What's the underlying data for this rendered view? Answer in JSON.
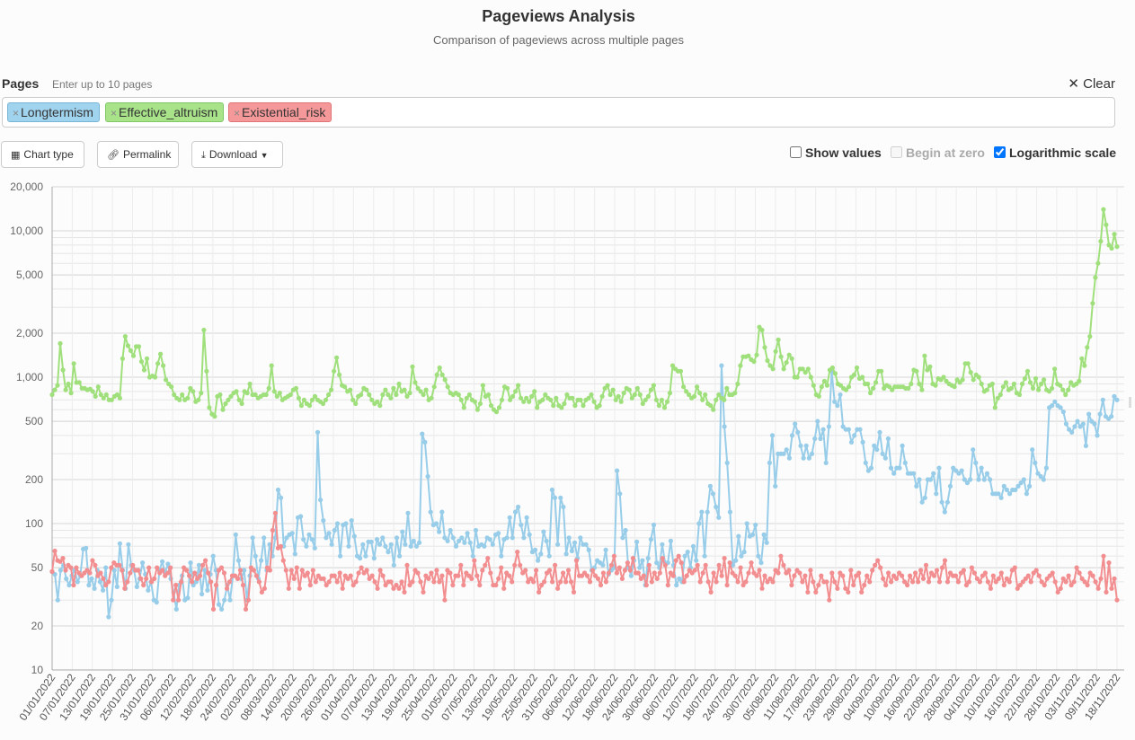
{
  "header": {
    "title": "Pageviews Analysis",
    "subtitle": "Comparison of pageviews across multiple pages"
  },
  "pages_input": {
    "label": "Pages",
    "hint": "Enter up to 10 pages",
    "clear_label": "Clear",
    "tags": [
      "Longtermism",
      "Effective_altruism",
      "Existential_risk"
    ]
  },
  "toolbar": {
    "chart_type_label": "Chart type",
    "permalink_label": "Permalink",
    "download_label": "Download",
    "show_values_label": "Show values",
    "show_values_checked": false,
    "begin_zero_label": "Begin at zero",
    "begin_zero_checked": false,
    "log_scale_label": "Logarithmic scale",
    "log_scale_checked": true
  },
  "chart_data": {
    "type": "line",
    "yscale": "log",
    "ylim": [
      10,
      20000
    ],
    "yticks": [
      10,
      20,
      50,
      100,
      200,
      500,
      1000,
      2000,
      5000,
      10000,
      20000
    ],
    "ytick_labels": [
      "10",
      "20",
      "50",
      "100",
      "200",
      "500",
      "1,000",
      "2,000",
      "5,000",
      "10,000",
      "20,000"
    ],
    "x_start": "01/01/2022",
    "x_end": "22/11/2022",
    "xtick_labels": [
      "01/01/2022",
      "07/01/2022",
      "13/01/2022",
      "19/01/2022",
      "25/01/2022",
      "31/01/2022",
      "06/02/2022",
      "12/02/2022",
      "18/02/2022",
      "24/02/2022",
      "02/03/2022",
      "08/03/2022",
      "14/03/2022",
      "20/03/2022",
      "26/03/2022",
      "01/04/2022",
      "07/04/2022",
      "13/04/2022",
      "19/04/2022",
      "25/04/2022",
      "01/05/2022",
      "07/05/2022",
      "13/05/2022",
      "19/05/2022",
      "25/05/2022",
      "31/05/2022",
      "06/06/2022",
      "12/06/2022",
      "18/06/2022",
      "24/06/2022",
      "30/06/2022",
      "06/07/2022",
      "12/07/2022",
      "18/07/2022",
      "24/07/2022",
      "30/07/2022",
      "05/08/2022",
      "11/08/2022",
      "17/08/2022",
      "23/08/2022",
      "29/08/2022",
      "04/09/2022",
      "10/09/2022",
      "16/09/2022",
      "22/09/2022",
      "28/09/2022",
      "04/10/2022",
      "10/10/2022",
      "16/10/2022",
      "22/10/2022",
      "28/10/2022",
      "03/11/2022",
      "09/11/2022",
      "18/11/2022"
    ],
    "series": [
      {
        "name": "Longtermism",
        "color": "#98cde9",
        "values": [
          47,
          45,
          30,
          48,
          52,
          42,
          38,
          44,
          48,
          40,
          44,
          67,
          68,
          38,
          42,
          36,
          48,
          40,
          35,
          50,
          23,
          30,
          48,
          37,
          73,
          48,
          36,
          72,
          52,
          48,
          37,
          42,
          54,
          45,
          35,
          40,
          30,
          29,
          48,
          55,
          46,
          53,
          42,
          34,
          26,
          38,
          44,
          30,
          31,
          54,
          38,
          40,
          52,
          33,
          48,
          35,
          45,
          60,
          48,
          28,
          26,
          30,
          38,
          30,
          44,
          84,
          56,
          42,
          48,
          30,
          44,
          80,
          60,
          42,
          56,
          80,
          48,
          72,
          60,
          80,
          170,
          150,
          70,
          80,
          84,
          86,
          62,
          110,
          112,
          78,
          70,
          84,
          78,
          68,
          420,
          145,
          105,
          80,
          86,
          72,
          90,
          100,
          60,
          98,
          100,
          70,
          105,
          82,
          60,
          58,
          72,
          60,
          75,
          75,
          58,
          78,
          72,
          80,
          70,
          64,
          72,
          52,
          80,
          60,
          88,
          72,
          118,
          70,
          76,
          70,
          74,
          410,
          360,
          210,
          120,
          98,
          100,
          88,
          120,
          80,
          76,
          90,
          80,
          70,
          76,
          80,
          74,
          86,
          74,
          60,
          90,
          70,
          72,
          70,
          80,
          78,
          72,
          84,
          86,
          60,
          78,
          80,
          110,
          80,
          120,
          130,
          98,
          80,
          110,
          84,
          64,
          66,
          56,
          62,
          88,
          76,
          60,
          170,
          150,
          72,
          150,
          130,
          62,
          80,
          65,
          74,
          58,
          80,
          72,
          72,
          66,
          48,
          50,
          56,
          54,
          52,
          66,
          45,
          48,
          50,
          230,
          160,
          80,
          90,
          50,
          44,
          56,
          75,
          50,
          56,
          38,
          58,
          78,
          98,
          54,
          50,
          72,
          54,
          54,
          76,
          52,
          38,
          42,
          40,
          60,
          64,
          50,
          70,
          56,
          100,
          120,
          60,
          120,
          180,
          160,
          130,
          110,
          1200,
          460,
          260,
          120,
          52,
          56,
          82,
          60,
          64,
          100,
          82,
          84,
          98,
          60,
          54,
          84,
          74,
          260,
          400,
          180,
          300,
          300,
          300,
          320,
          280,
          400,
          480,
          420,
          340,
          280,
          340,
          280,
          300,
          380,
          500,
          380,
          440,
          260,
          460,
          1100,
          680,
          640,
          760,
          460,
          440,
          440,
          360,
          400,
          440,
          440,
          360,
          260,
          230,
          240,
          340,
          320,
          420,
          300,
          280,
          380,
          240,
          220,
          240,
          240,
          340,
          260,
          220,
          220,
          220,
          180,
          200,
          140,
          150,
          200,
          200,
          220,
          160,
          240,
          140,
          120,
          140,
          180,
          240,
          230,
          220,
          230,
          200,
          190,
          200,
          320,
          260,
          200,
          240,
          200,
          220,
          200,
          160,
          160,
          160,
          150,
          180,
          170,
          160,
          170,
          170,
          180,
          190,
          200,
          160,
          180,
          320,
          260,
          220,
          210,
          200,
          240,
          620,
          640,
          680,
          640,
          620,
          580,
          480,
          440,
          420,
          460,
          500,
          460,
          480,
          340,
          560,
          500,
          480,
          400,
          560,
          700,
          540,
          520,
          540,
          740,
          700
        ],
        "start_offset": 0
      },
      {
        "name": "Effective_altruism",
        "color": "#a0e07c",
        "values": [
          760,
          820,
          880,
          1700,
          1120,
          820,
          900,
          780,
          1240,
          920,
          920,
          840,
          840,
          820,
          830,
          800,
          740,
          860,
          760,
          720,
          760,
          700,
          700,
          740,
          760,
          720,
          1340,
          1900,
          1640,
          1520,
          1400,
          1620,
          1620,
          1280,
          1120,
          1340,
          1000,
          1020,
          1000,
          1240,
          1440,
          1200,
          960,
          900,
          860,
          760,
          720,
          700,
          760,
          700,
          720,
          840,
          800,
          680,
          700,
          780,
          2100,
          1100,
          620,
          560,
          540,
          740,
          760,
          600,
          660,
          700,
          740,
          780,
          800,
          700,
          660,
          800,
          780,
          900,
          760,
          760,
          720,
          740,
          760,
          760,
          840,
          1200,
          800,
          740,
          780,
          700,
          720,
          740,
          760,
          820,
          840,
          720,
          640,
          700,
          660,
          640,
          700,
          740,
          700,
          680,
          660,
          700,
          760,
          820,
          1100,
          1360,
          1040,
          880,
          860,
          800,
          820,
          700,
          660,
          740,
          760,
          840,
          820,
          760,
          700,
          660,
          680,
          640,
          760,
          820,
          760,
          720,
          840,
          760,
          900,
          800,
          820,
          740,
          780,
          1180,
          920,
          840,
          800,
          760,
          820,
          700,
          720,
          860,
          1040,
          1160,
          1040,
          960,
          860,
          780,
          760,
          780,
          760,
          700,
          620,
          720,
          760,
          700,
          680,
          600,
          660,
          880,
          740,
          760,
          640,
          600,
          580,
          620,
          700,
          860,
          840,
          700,
          740,
          800,
          880,
          720,
          680,
          720,
          680,
          740,
          800,
          620,
          680,
          700,
          760,
          720,
          700,
          640,
          720,
          640,
          620,
          660,
          760,
          720,
          720,
          640,
          700,
          700,
          640,
          700,
          720,
          760,
          680,
          620,
          640,
          740,
          840,
          880,
          760,
          820,
          700,
          740,
          680,
          780,
          840,
          820,
          720,
          760,
          840,
          760,
          660,
          700,
          740,
          820,
          880,
          700,
          640,
          700,
          620,
          680,
          780,
          1200,
          1140,
          1100,
          1100,
          860,
          800,
          760,
          720,
          740,
          860,
          780,
          700,
          760,
          660,
          640,
          600,
          700,
          760,
          720,
          700,
          840,
          760,
          760,
          780,
          900,
          1200,
          1380,
          1380,
          1400,
          1320,
          1280,
          1420,
          2200,
          2100,
          1600,
          1300,
          1200,
          1140,
          1500,
          1800,
          1380,
          1140,
          1260,
          1420,
          1340,
          1000,
          1000,
          1140,
          1140,
          1080,
          1140,
          1000,
          880,
          760,
          740,
          860,
          940,
          880,
          1120,
          1160,
          1060,
          900,
          880,
          840,
          820,
          860,
          1000,
          1040,
          1160,
          980,
          1000,
          900,
          900,
          780,
          840,
          920,
          1100,
          1100,
          840,
          880,
          860,
          820,
          860,
          860,
          860,
          860,
          840,
          840,
          900,
          1120,
          1100,
          900,
          820,
          1400,
          1120,
          1180,
          900,
          880,
          980,
          960,
          1000,
          940,
          900,
          880,
          860,
          960,
          920,
          960,
          1240,
          1240,
          1080,
          960,
          1040,
          1000,
          900,
          800,
          820,
          880,
          900,
          620,
          720,
          760,
          860,
          920,
          820,
          840,
          900,
          780,
          760,
          900,
          980,
          1100,
          920,
          840,
          980,
          820,
          900,
          960,
          820,
          800,
          840,
          1140,
          900,
          880,
          820,
          760,
          820,
          920,
          880,
          900,
          940,
          1340,
          1200,
          1600,
          1900,
          3200,
          4800,
          6000,
          8500,
          14000,
          11000,
          8000,
          7600,
          9500,
          7800
        ],
        "start_offset": 0
      },
      {
        "name": "Existential_risk",
        "color": "#f28e90",
        "values": [
          47,
          65,
          56,
          55,
          58,
          48,
          52,
          50,
          38,
          50,
          46,
          44,
          46,
          48,
          46,
          56,
          52,
          44,
          46,
          42,
          38,
          40,
          50,
          54,
          52,
          52,
          48,
          36,
          40,
          46,
          52,
          48,
          48,
          42,
          38,
          42,
          50,
          40,
          42,
          50,
          46,
          48,
          44,
          46,
          50,
          30,
          38,
          30,
          40,
          50,
          48,
          44,
          40,
          46,
          42,
          44,
          52,
          56,
          46,
          40,
          26,
          38,
          48,
          50,
          46,
          36,
          40,
          44,
          44,
          42,
          48,
          38,
          26,
          30,
          50,
          48,
          44,
          40,
          34,
          36,
          50,
          48,
          90,
          118,
          68,
          70,
          56,
          48,
          36,
          48,
          42,
          50,
          36,
          48,
          44,
          46,
          38,
          48,
          40,
          44,
          42,
          42,
          38,
          40,
          44,
          44,
          40,
          46,
          36,
          44,
          42,
          44,
          38,
          40,
          46,
          50,
          46,
          48,
          42,
          44,
          40,
          36,
          48,
          44,
          38,
          40,
          40,
          36,
          38,
          36,
          40,
          34,
          52,
          38,
          40,
          48,
          46,
          40,
          34,
          44,
          42,
          46,
          40,
          48,
          40,
          44,
          30,
          48,
          46,
          38,
          44,
          44,
          52,
          38,
          46,
          44,
          42,
          56,
          44,
          38,
          48,
          52,
          58,
          46,
          38,
          38,
          42,
          50,
          36,
          46,
          44,
          40,
          52,
          64,
          52,
          46,
          48,
          40,
          42,
          40,
          48,
          34,
          38,
          40,
          46,
          48,
          40,
          52,
          36,
          40,
          46,
          40,
          48,
          40,
          34,
          56,
          44,
          44,
          46,
          44,
          40,
          48,
          44,
          42,
          38,
          46,
          40,
          46,
          52,
          60,
          46,
          50,
          42,
          48,
          54,
          48,
          58,
          46,
          46,
          42,
          44,
          38,
          52,
          40,
          46,
          42,
          46,
          58,
          52,
          38,
          46,
          44,
          56,
          60,
          54,
          40,
          44,
          48,
          46,
          48,
          52,
          40,
          46,
          52,
          40,
          34,
          46,
          40,
          52,
          44,
          58,
          38,
          54,
          46,
          44,
          40,
          50,
          38,
          40,
          46,
          54,
          46,
          44,
          48,
          36,
          44,
          40,
          42,
          40,
          48,
          46,
          60,
          52,
          46,
          48,
          38,
          44,
          48,
          46,
          40,
          44,
          34,
          48,
          40,
          34,
          38,
          44,
          40,
          40,
          30,
          46,
          40,
          36,
          46,
          44,
          36,
          34,
          48,
          38,
          44,
          46,
          34,
          38,
          44,
          40,
          48,
          52,
          56,
          50,
          42,
          38,
          46,
          40,
          44,
          42,
          46,
          44,
          40,
          38,
          44,
          40,
          46,
          40,
          48,
          42,
          52,
          40,
          46,
          44,
          48,
          40,
          50,
          56,
          40,
          46,
          44,
          44,
          40,
          46,
          48,
          38,
          40,
          50,
          46,
          42,
          40,
          44,
          46,
          40,
          36,
          44,
          40,
          42,
          46,
          38,
          42,
          40,
          48,
          50,
          36,
          38,
          40,
          42,
          44,
          40,
          46,
          48,
          44,
          40,
          38,
          42,
          44,
          46,
          40,
          34,
          36,
          42,
          40,
          44,
          38,
          40,
          50,
          46,
          42,
          40,
          38,
          46,
          44,
          40,
          36,
          42,
          60,
          34,
          54,
          36,
          42,
          30
        ],
        "start_offset": 0
      }
    ],
    "legend": "none",
    "grid": true
  }
}
